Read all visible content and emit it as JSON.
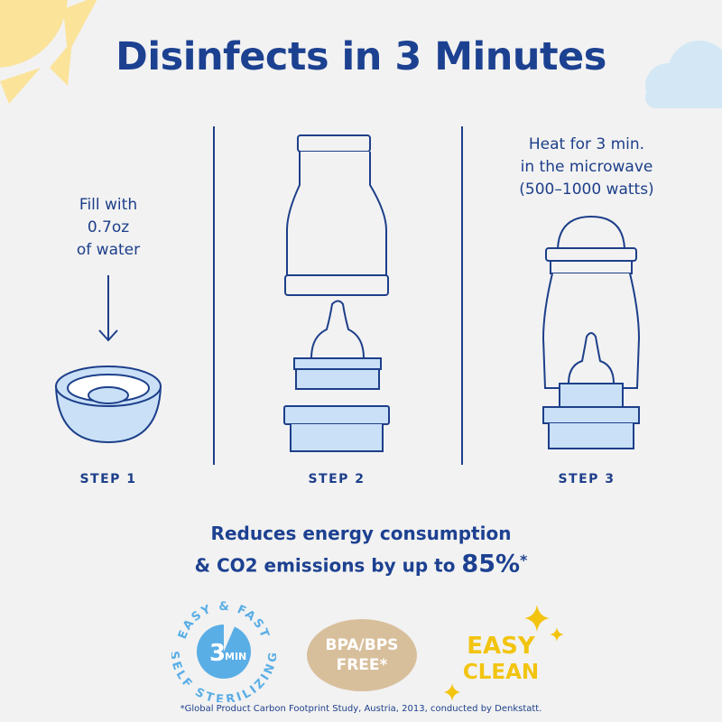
{
  "title": "Disinfects in 3 Minutes",
  "steps": [
    {
      "label": "STEP 1",
      "instruction": [
        "Fill with",
        "0.7oz",
        "of water"
      ]
    },
    {
      "label": "STEP 2"
    },
    {
      "label": "STEP 3",
      "instruction": [
        "Heat for 3 min.",
        "in the microwave",
        "(500–1000 watts)"
      ]
    }
  ],
  "claim": {
    "line1": "Reduces energy consumption",
    "line2": "& CO2 emissions by up to",
    "value": "85%",
    "mark": "*"
  },
  "badges": {
    "timer": {
      "top_arc": "EASY & FAST",
      "bottom_arc": "SELF STERILIZING",
      "number": "3",
      "unit": "MIN"
    },
    "bpa": {
      "line1": "BPA/BPS",
      "line2": "FREE*"
    },
    "clean": {
      "line1": "EASY",
      "line2": "CLEAN"
    }
  },
  "footnote": "*Global Product Carbon Footprint Study, Austria, 2013, conducted by Denkstatt.",
  "colors": {
    "navy": "#1d3f8a",
    "light_blue": "#c9e0f7",
    "sky": "#5aaee6",
    "beige": "#d8bf9c",
    "yellow": "#f2c40f",
    "sun": "#fbe39a",
    "cloud": "#d3e8f4"
  }
}
